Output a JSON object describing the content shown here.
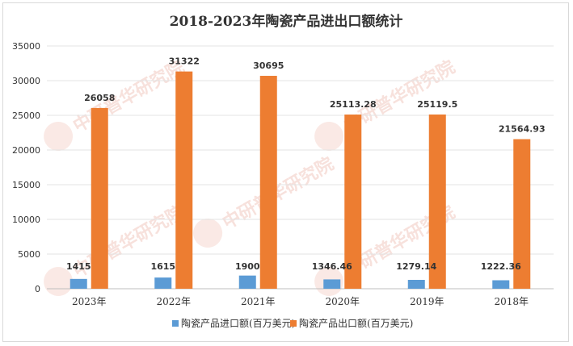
{
  "chart_data": {
    "type": "bar",
    "title": "2018-2023年陶瓷产品进出口额统计",
    "categories": [
      "2023年",
      "2022年",
      "2021年",
      "2020年",
      "2019年",
      "2018年"
    ],
    "series": [
      {
        "name": "陶瓷产品进口额(百万美元)",
        "color": "#5b9bd5",
        "values": [
          1415,
          1615,
          1900,
          1346.46,
          1279.14,
          1222.36
        ],
        "labels": [
          "1415",
          "1615",
          "1900",
          "1346.46",
          "1279.14",
          "1222.36"
        ]
      },
      {
        "name": "陶瓷产品出口额(百万美元)",
        "color": "#ed7d31",
        "values": [
          26058,
          31322,
          30695,
          25113.28,
          25119.5,
          21564.93
        ],
        "labels": [
          "26058",
          "31322",
          "30695",
          "25113.28",
          "25119.5",
          "21564.93"
        ]
      }
    ],
    "ylim": [
      0,
      35000
    ],
    "yticks": [
      0,
      5000,
      10000,
      15000,
      20000,
      25000,
      30000,
      35000
    ],
    "grid": true,
    "legend": "bottom",
    "watermark": "中研普华研究院"
  }
}
